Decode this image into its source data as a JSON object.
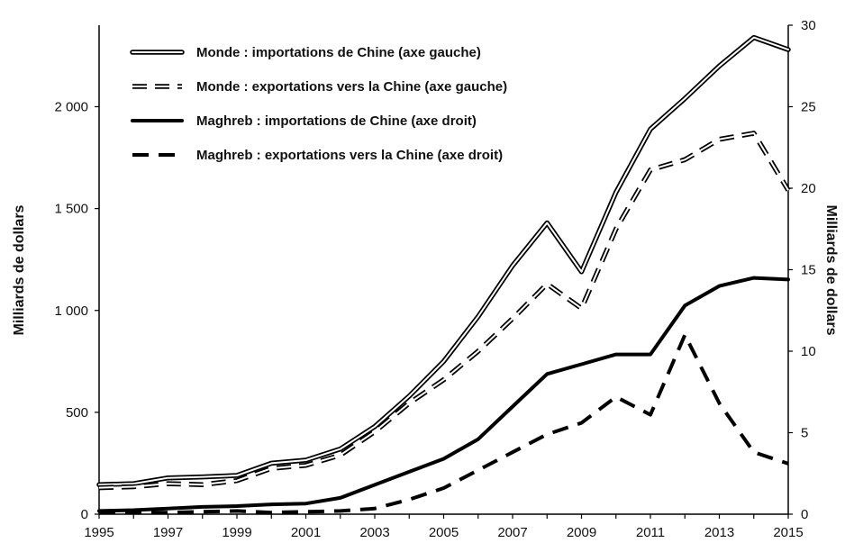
{
  "chart_data": {
    "type": "line",
    "title": "",
    "x": [
      1995,
      1996,
      1997,
      1998,
      1999,
      2000,
      2001,
      2002,
      2003,
      2004,
      2005,
      2006,
      2007,
      2008,
      2009,
      2010,
      2011,
      2012,
      2013,
      2014,
      2015
    ],
    "xticks": [
      "1995",
      "1997",
      "1999",
      "2001",
      "2003",
      "2005",
      "2007",
      "2009",
      "2011",
      "2013",
      "2015"
    ],
    "ylabel_left": "Milliards de dollars",
    "ylabel_right": "Milliards de dollars",
    "ylim_left": [
      0,
      2400
    ],
    "ylim_right": [
      0,
      30
    ],
    "yticks_left": [
      {
        "value": 0,
        "label": "0"
      },
      {
        "value": 500,
        "label": "500"
      },
      {
        "value": 1000,
        "label": "1 000"
      },
      {
        "value": 1500,
        "label": "1 500"
      },
      {
        "value": 2000,
        "label": "2 000"
      }
    ],
    "yticks_right": [
      {
        "value": 0,
        "label": "0"
      },
      {
        "value": 5,
        "label": "5"
      },
      {
        "value": 10,
        "label": "10"
      },
      {
        "value": 15,
        "label": "15"
      },
      {
        "value": 20,
        "label": "20"
      },
      {
        "value": 25,
        "label": "25"
      },
      {
        "value": 30,
        "label": "30"
      }
    ],
    "legend_position": "top-left",
    "grid": false,
    "series": [
      {
        "name": "Monde : importations de Chine (axe gauche)",
        "axis": "left",
        "style": "double",
        "values": [
          145,
          150,
          178,
          183,
          190,
          250,
          265,
          320,
          430,
          580,
          750,
          970,
          1220,
          1430,
          1190,
          1580,
          1890,
          2040,
          2200,
          2340,
          2280
        ]
      },
      {
        "name": "Monde : exportations vers la Chine (axe gauche)",
        "axis": "left",
        "style": "double-dashed",
        "values": [
          130,
          135,
          150,
          145,
          165,
          225,
          240,
          290,
          405,
          545,
          660,
          800,
          960,
          1130,
          1010,
          1400,
          1690,
          1740,
          1840,
          1870,
          1590
        ]
      },
      {
        "name": "Maghreb : importations de Chine (axe droit)",
        "axis": "right",
        "style": "solid",
        "values": [
          0.2,
          0.25,
          0.35,
          0.45,
          0.5,
          0.6,
          0.65,
          1.0,
          1.8,
          2.6,
          3.4,
          4.6,
          6.6,
          8.6,
          9.2,
          9.8,
          9.8,
          12.8,
          14.0,
          14.5,
          14.4
        ]
      },
      {
        "name": "Maghreb : exportations vers la Chine (axe droit)",
        "axis": "right",
        "style": "dashed",
        "values": [
          0.1,
          0.1,
          0.1,
          0.15,
          0.2,
          0.1,
          0.15,
          0.2,
          0.35,
          0.9,
          1.6,
          2.7,
          3.8,
          4.9,
          5.6,
          7.2,
          6.1,
          11.0,
          6.8,
          3.8,
          3.1
        ]
      }
    ]
  }
}
